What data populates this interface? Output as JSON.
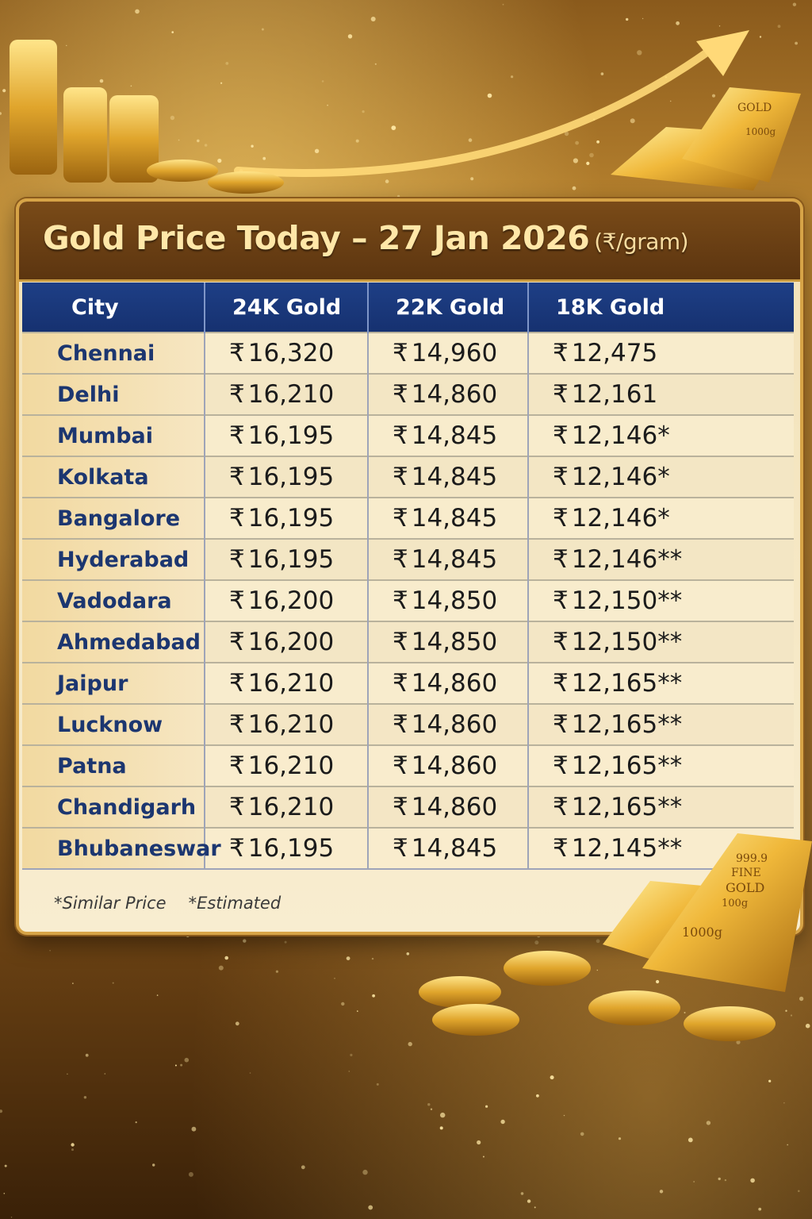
{
  "title": {
    "main": "Gold Price Today – 27 Jan 2026",
    "unit": "(₹/gram)"
  },
  "table": {
    "headers": [
      "City",
      "24K Gold",
      "22K Gold",
      "18K Gold"
    ],
    "currency_symbol": "₹",
    "rows": [
      {
        "city": "Chennai",
        "k24": "16,320",
        "k22": "14,960",
        "k18": "12,475"
      },
      {
        "city": "Delhi",
        "k24": "16,210",
        "k22": "14,860",
        "k18": "12,161"
      },
      {
        "city": "Mumbai",
        "k24": "16,195",
        "k22": "14,845",
        "k18": "12,146*"
      },
      {
        "city": "Kolkata",
        "k24": "16,195",
        "k22": "14,845",
        "k18": "12,146*"
      },
      {
        "city": "Bangalore",
        "k24": "16,195",
        "k22": "14,845",
        "k18": "12,146*"
      },
      {
        "city": "Hyderabad",
        "k24": "16,195",
        "k22": "14,845",
        "k18": "12,146**"
      },
      {
        "city": "Vadodara",
        "k24": "16,200",
        "k22": "14,850",
        "k18": "12,150**"
      },
      {
        "city": "Ahmedabad",
        "k24": "16,200",
        "k22": "14,850",
        "k18": "12,150**"
      },
      {
        "city": "Jaipur",
        "k24": "16,210",
        "k22": "14,860",
        "k18": "12,165**"
      },
      {
        "city": "Lucknow",
        "k24": "16,210",
        "k22": "14,860",
        "k18": "12,165**"
      },
      {
        "city": "Patna",
        "k24": "16,210",
        "k22": "14,860",
        "k18": "12,165**"
      },
      {
        "city": "Chandigarh",
        "k24": "16,210",
        "k22": "14,860",
        "k18": "12,165**"
      },
      {
        "city": "Bhubaneswar",
        "k24": "16,195",
        "k22": "14,845",
        "k18": "12,145**"
      }
    ]
  },
  "footnotes": [
    "*Similar Price",
    "*Estimated"
  ],
  "decor": {
    "bar_labels": [
      "999.9",
      "FINE",
      "GOLD",
      "100g",
      "1000g"
    ]
  },
  "colors": {
    "header_blue": "#1e3f86",
    "city_text": "#1c3670",
    "title_gold": "#ffe7a8",
    "frame_gold": "#d7a447"
  }
}
